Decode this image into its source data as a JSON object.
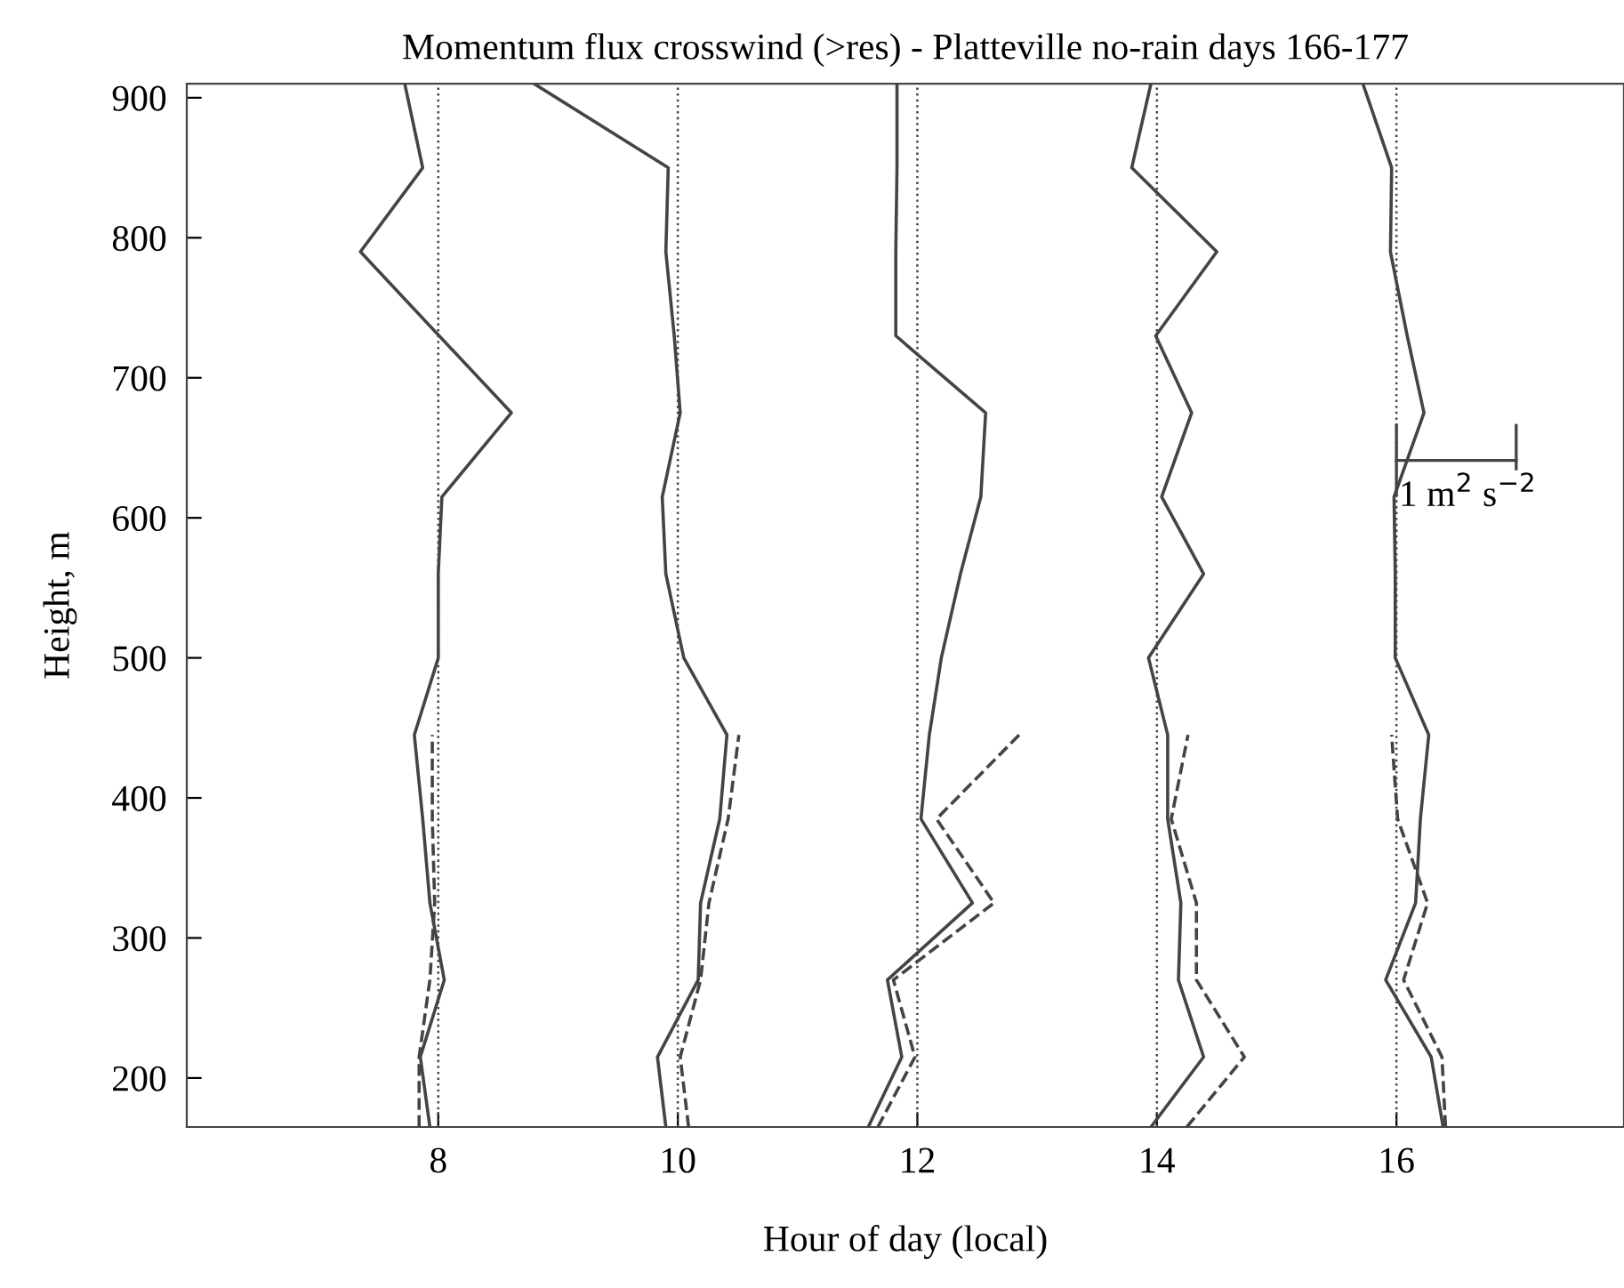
{
  "chart_data": {
    "type": "line",
    "title": "Momentum flux crosswind (>res) - Platteville no-rain days 166-177",
    "xlabel": "Hour of day (local)",
    "ylabel": "Height, m",
    "xlim": [
      5.9,
      17.9
    ],
    "ylim": [
      165,
      910
    ],
    "xticks": [
      8,
      10,
      12,
      14,
      16
    ],
    "yticks": [
      200,
      300,
      400,
      500,
      600,
      700,
      800,
      900
    ],
    "grid": false,
    "legend": false,
    "marker": "none",
    "series": [
      {
        "color": "#444444",
        "line_style": "solid",
        "x": [
          7.93,
          7.85,
          8.05,
          7.93,
          7.87,
          7.8,
          8.0,
          8.0,
          8.03,
          8.61,
          7.35,
          7.87,
          7.72
        ],
        "values": [
          165,
          215,
          270,
          325,
          385,
          445,
          500,
          560,
          615,
          675,
          790,
          850,
          910
        ]
      },
      {
        "color": "#444444",
        "line_style": "dashed",
        "x": [
          7.84,
          7.84,
          7.93,
          7.97,
          7.95,
          7.95
        ],
        "values": [
          165,
          215,
          270,
          325,
          385,
          445
        ]
      },
      {
        "color": "#444444",
        "line_style": "solid",
        "x": [
          9.9,
          9.83,
          10.17,
          10.19,
          10.35,
          10.41,
          10.05,
          9.9,
          9.87,
          10.02,
          9.97,
          9.9,
          9.92,
          8.8
        ],
        "values": [
          165,
          215,
          270,
          325,
          385,
          445,
          500,
          560,
          615,
          675,
          730,
          790,
          850,
          910
        ]
      },
      {
        "color": "#444444",
        "line_style": "dashed",
        "x": [
          10.09,
          10.02,
          10.19,
          10.26,
          10.42,
          10.51
        ],
        "values": [
          165,
          215,
          270,
          325,
          385,
          445
        ]
      },
      {
        "color": "#444444",
        "line_style": "solid",
        "x": [
          11.59,
          11.87,
          11.75,
          12.46,
          12.03,
          12.1,
          12.2,
          12.36,
          12.53,
          12.57,
          11.82,
          11.82,
          11.83,
          11.83
        ],
        "values": [
          165,
          215,
          270,
          325,
          385,
          445,
          500,
          560,
          615,
          675,
          730,
          790,
          850,
          910
        ]
      },
      {
        "color": "#444444",
        "line_style": "dashed",
        "x": [
          11.67,
          11.98,
          11.8,
          12.64,
          12.16,
          12.85
        ],
        "values": [
          165,
          215,
          270,
          325,
          385,
          445
        ]
      },
      {
        "color": "#444444",
        "line_style": "solid",
        "x": [
          13.95,
          14.39,
          14.18,
          14.2,
          14.09,
          14.09,
          13.93,
          14.39,
          14.04,
          14.29,
          13.99,
          14.5,
          13.79,
          13.95
        ],
        "values": [
          165,
          215,
          270,
          325,
          385,
          445,
          500,
          560,
          615,
          675,
          730,
          790,
          850,
          910
        ]
      },
      {
        "color": "#444444",
        "line_style": "dashed",
        "x": [
          14.25,
          14.73,
          14.33,
          14.33,
          14.12,
          14.26
        ],
        "values": [
          165,
          215,
          270,
          325,
          385,
          445
        ]
      },
      {
        "color": "#444444",
        "line_style": "solid",
        "x": [
          16.39,
          16.29,
          15.91,
          16.16,
          16.2,
          16.27,
          15.99,
          15.99,
          15.98,
          16.23,
          16.09,
          15.95,
          15.96,
          15.72
        ],
        "values": [
          165,
          215,
          270,
          325,
          385,
          445,
          500,
          560,
          615,
          675,
          730,
          790,
          850,
          910
        ]
      },
      {
        "color": "#444444",
        "line_style": "dashed",
        "x": [
          16.41,
          16.38,
          16.06,
          16.26,
          16.01,
          15.96
        ],
        "values": [
          165,
          215,
          270,
          325,
          385,
          445
        ]
      }
    ],
    "ref_lines": [
      {
        "axis": "x",
        "value": 8,
        "color": "#444444",
        "line_style": "dotted"
      },
      {
        "axis": "x",
        "value": 10,
        "color": "#444444",
        "line_style": "dotted"
      },
      {
        "axis": "x",
        "value": 12,
        "color": "#444444",
        "line_style": "dotted"
      },
      {
        "axis": "x",
        "value": 14,
        "color": "#444444",
        "line_style": "dotted"
      },
      {
        "axis": "x",
        "value": 16,
        "color": "#444444",
        "line_style": "dotted"
      }
    ],
    "annotations": [
      {
        "text": "1 m$^{2}$ s$^{−2}$",
        "x": 16.0,
        "y": 637
      }
    ]
  }
}
